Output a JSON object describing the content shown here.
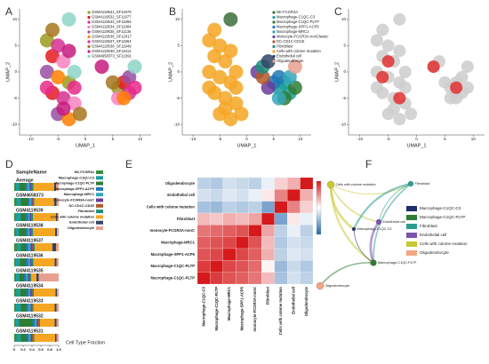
{
  "chart_data": [
    {
      "type": "scatter",
      "label": "A",
      "xlabel": "UMAP_1",
      "ylabel": "UMAP_2",
      "xlim": [
        -12,
        12
      ],
      "ylim": [
        -12,
        12
      ],
      "xticks": [
        -10,
        -5,
        0,
        5,
        10
      ],
      "yticks": [
        -10,
        -5,
        0,
        5,
        10
      ],
      "legend": "upper right",
      "series": [
        {
          "name": "GSM4119531_SF11979",
          "color": "#9b9b1e",
          "x": [
            -7,
            -3,
            6
          ],
          "y": [
            6,
            -2,
            -3
          ]
        },
        {
          "name": "GSM4119532_SF11977",
          "color": "#e41a1c",
          "x": [
            -6,
            -6,
            7
          ],
          "y": [
            3,
            -4,
            -2
          ]
        },
        {
          "name": "GSM4119533_SF11956",
          "color": "#d62f8e",
          "x": [
            -5,
            -4,
            8
          ],
          "y": [
            5,
            -5,
            -4
          ]
        },
        {
          "name": "GSM4119534_SF11964",
          "color": "#f781bf",
          "x": [
            -4,
            -2,
            6
          ],
          "y": [
            2,
            -6,
            -5
          ]
        },
        {
          "name": "GSM4119535_SF11136",
          "color": "#984ea3",
          "x": [
            -7,
            -5,
            8
          ],
          "y": [
            0,
            -8,
            -1
          ]
        },
        {
          "name": "GSM4119536_SF12017",
          "color": "#ff7f00",
          "x": [
            -5,
            -3,
            7
          ],
          "y": [
            -1,
            -9,
            -5
          ]
        },
        {
          "name": "GSM4119537_SF11964",
          "color": "#e7298a",
          "x": [
            -7,
            -2,
            9
          ],
          "y": [
            -3,
            -3,
            -3
          ]
        },
        {
          "name": "GSM4119538_SF11949",
          "color": "#a6761d",
          "x": [
            -1,
            -6,
            5
          ],
          "y": [
            -8,
            8,
            -2
          ]
        },
        {
          "name": "GSM4119539_SF11612",
          "color": "#c51b7d",
          "x": [
            -4,
            -3,
            3
          ],
          "y": [
            -7,
            4,
            1
          ]
        },
        {
          "name": "GSM4658373_SF11991",
          "color": "#8dd3c7",
          "x": [
            -2,
            -3,
            9
          ],
          "y": [
            0,
            10,
            1
          ]
        }
      ]
    },
    {
      "type": "scatter",
      "label": "B",
      "xlabel": "UMAP_1",
      "ylabel": "UMAP_2",
      "xlim": [
        -12,
        12
      ],
      "ylim": [
        -12,
        12
      ],
      "xticks": [
        -10,
        -5,
        0,
        5,
        10
      ],
      "yticks": [
        -10,
        -5,
        0,
        5,
        10
      ],
      "legend": "upper right",
      "series": [
        {
          "name": "NK-FCGR3A",
          "color": "#3b6e3b",
          "x": [
            -3
          ],
          "y": [
            10
          ]
        },
        {
          "name": "Macrophage-C1QC-C3",
          "color": "#1b9e9e",
          "x": [
            6,
            7,
            8
          ],
          "y": [
            -3,
            -2,
            -4
          ]
        },
        {
          "name": "Macrophage-C1QC-PLTP",
          "color": "#2e7d32",
          "x": [
            7,
            9
          ],
          "y": [
            -5,
            -3
          ]
        },
        {
          "name": "Macrophage-SPP1-ACP5",
          "color": "#1f78b4",
          "x": [
            5,
            6
          ],
          "y": [
            -2,
            -1
          ]
        },
        {
          "name": "Macrophage-MRC1",
          "color": "#33a6b8",
          "x": [
            6,
            8
          ],
          "y": [
            -5,
            -1
          ]
        },
        {
          "name": "Monocyte-FCGR3A-nonClassic",
          "color": "#6a3d9a",
          "x": [
            2,
            4
          ],
          "y": [
            0,
            -3
          ]
        },
        {
          "name": "DC-CD1C-CD1E",
          "color": "#b15928",
          "x": [
            3
          ],
          "y": [
            -1
          ]
        },
        {
          "name": "Fibroblast",
          "color": "#1f8f7a",
          "x": [
            3
          ],
          "y": [
            1
          ]
        },
        {
          "name": "Cells with colome mutation",
          "color": "#f5a623",
          "x": [
            -7,
            -6,
            -5,
            -4,
            -7,
            -5,
            -3,
            -6,
            -4,
            -2,
            -5,
            -3,
            -7,
            -2,
            -1,
            -4,
            -6,
            -3,
            -2
          ],
          "y": [
            6,
            3,
            5,
            2,
            0,
            -1,
            -2,
            -4,
            -5,
            -6,
            -8,
            -9,
            -3,
            -3,
            -8,
            -7,
            8,
            4,
            0
          ]
        },
        {
          "name": "Endothelial cell",
          "color": "#334466",
          "x": [
            4
          ],
          "y": [
            2
          ]
        },
        {
          "name": "Oligodendrocyte",
          "color": "#e8a090",
          "x": [
            9
          ],
          "y": [
            1
          ]
        }
      ]
    },
    {
      "type": "scatter",
      "label": "C",
      "xlabel": "UMAP_1",
      "ylabel": "UMAP_2",
      "xlim": [
        -12,
        12
      ],
      "ylim": [
        -12,
        12
      ],
      "xticks": [
        -10,
        -5,
        0,
        5,
        10
      ],
      "yticks": [
        -10,
        -5,
        0,
        5,
        10
      ],
      "series": [
        {
          "color": "#cccccc",
          "x": [
            -7,
            -6,
            -5,
            -4,
            -7,
            -5,
            -3,
            -6,
            -4,
            -2,
            -5,
            -3,
            -7,
            -2,
            -1,
            -4,
            -6,
            -3,
            -2,
            6,
            7,
            8,
            6,
            8,
            7,
            9,
            5,
            3,
            4,
            -3,
            9
          ],
          "y": [
            6,
            3,
            5,
            2,
            0,
            -1,
            -2,
            -4,
            -5,
            -6,
            -8,
            -9,
            -3,
            -3,
            -8,
            -7,
            8,
            4,
            0,
            -3,
            -2,
            -4,
            -5,
            -1,
            -5,
            -3,
            -2,
            1,
            2,
            10,
            1
          ]
        },
        {
          "color": "#e03030",
          "x": [
            -5,
            -3,
            7,
            -6,
            3
          ],
          "y": [
            2,
            -5,
            -3,
            -1,
            1
          ]
        }
      ]
    },
    {
      "type": "stacked-barh",
      "label": "D",
      "header": "SampleName",
      "xlabel": "Cell Type Fraction",
      "xlim": [
        0,
        1
      ],
      "xticks": [
        0,
        0.2,
        0.4,
        0.6,
        0.8,
        {
          "value": 1,
          "label": "1.0"
        }
      ],
      "categories": [
        "Average",
        "GSM4658373",
        "GSM4119539",
        "GSM4119538",
        "GSM4119537",
        "GSM4119536",
        "GSM4119535",
        "GSM4119534",
        "GSM4119533",
        "GSM4119532",
        "GSM4119531"
      ],
      "series": [
        {
          "name": "NK-FCGR3A",
          "color": "#3b8e3b",
          "values": [
            0.04,
            0.05,
            0.03,
            0.04,
            0.06,
            0.03,
            0.04,
            0.05,
            0.04,
            0.03,
            0.05
          ]
        },
        {
          "name": "Macrophage-C1QC-C3",
          "color": "#1b9e9e",
          "values": [
            0.08,
            0.1,
            0.12,
            0.07,
            0.09,
            0.1,
            0.08,
            0.09,
            0.11,
            0.08,
            0.1
          ]
        },
        {
          "name": "Macrophage-C1QC-PLTP",
          "color": "#2e7d32",
          "values": [
            0.12,
            0.15,
            0.1,
            0.14,
            0.11,
            0.12,
            0.1,
            0.13,
            0.12,
            0.3,
            0.12
          ]
        },
        {
          "name": "Macrophage-SPP1-ACP5",
          "color": "#1f78b4",
          "values": [
            0.05,
            0.04,
            0.06,
            0.05,
            0.05,
            0.06,
            0.04,
            0.05,
            0.04,
            0.05,
            0.05
          ]
        },
        {
          "name": "Macrophage-MRC1",
          "color": "#33a6b8",
          "values": [
            0.06,
            0.05,
            0.04,
            0.05,
            0.06,
            0.05,
            0.05,
            0.04,
            0.06,
            0.05,
            0.05
          ]
        },
        {
          "name": "monocyte-FCGR3A-nonC",
          "color": "#6a3d9a",
          "values": [
            0.03,
            0.02,
            0.03,
            0.03,
            0.04,
            0.02,
            0.03,
            0.03,
            0.02,
            0.03,
            0.03
          ]
        },
        {
          "name": "DC-CD1C-CD1E",
          "color": "#b15928",
          "values": [
            0.02,
            0.02,
            0.02,
            0.01,
            0.03,
            0.02,
            0.02,
            0.02,
            0.02,
            0.02,
            0.02
          ]
        },
        {
          "name": "Fibroblast",
          "color": "#1f8f7a",
          "values": [
            0.03,
            0.02,
            0.02,
            0.03,
            0.02,
            0.03,
            0.02,
            0.03,
            0.02,
            0.02,
            0.03
          ]
        },
        {
          "name": "Cells with colome mutation",
          "color": "#f5a623",
          "values": [
            0.47,
            0.45,
            0.52,
            0.5,
            0.4,
            0.48,
            0.12,
            0.49,
            0.48,
            0.33,
            0.47
          ]
        },
        {
          "name": "Endothelial cell",
          "color": "#334466",
          "values": [
            0.04,
            0.05,
            0.03,
            0.04,
            0.08,
            0.04,
            0.05,
            0.03,
            0.04,
            0.04,
            0.03
          ]
        },
        {
          "name": "Oligodendrocyte",
          "color": "#e8a090",
          "values": [
            0.06,
            0.05,
            0.03,
            0.04,
            0.06,
            0.05,
            0.45,
            0.04,
            0.05,
            0.05,
            0.05
          ]
        }
      ]
    },
    {
      "type": "heatmap",
      "label": "E",
      "zlim": [
        -1,
        1
      ],
      "colors": [
        "#2166ac",
        "#ffffff",
        "#d6191b"
      ],
      "rows": [
        "Oligodendrocyte",
        "Endothelial cell",
        "Cells with colome mutation",
        "Fibroblast",
        "monocyte-FCGR3A-nonC",
        "Macrophage-MRC1",
        "Macrophage-SPP1-ACP5",
        "Macrophage-C1QC-PLTP",
        "Macrophage-C1QC-PLTP"
      ],
      "columns": [
        "Macrophage-C1QC-C3",
        "Macrophage-C1QC-PLTP",
        "Macrophage-MRC1",
        "Macrophage-SPP1-ACP5",
        "monocyte-FCGR3A-nonC",
        "Fibroblast",
        "Cells with colome mutation",
        "Endothelial cell",
        "Oligodendrocyte"
      ],
      "values": [
        [
          -0.3,
          -0.35,
          -0.2,
          -0.25,
          -0.3,
          -0.1,
          0.2,
          0.35,
          1
        ],
        [
          -0.2,
          -0.25,
          -0.15,
          -0.2,
          -0.1,
          0.1,
          0.55,
          1,
          0.35
        ],
        [
          -0.4,
          -0.45,
          -0.3,
          -0.35,
          -0.3,
          -0.6,
          1,
          0.55,
          0.2
        ],
        [
          0.3,
          0.25,
          0.35,
          0.3,
          0.4,
          1,
          -0.6,
          0.1,
          -0.1
        ],
        [
          0.6,
          0.65,
          0.7,
          0.75,
          1,
          0.4,
          -0.3,
          -0.1,
          -0.3
        ],
        [
          0.7,
          0.75,
          0.8,
          1,
          0.75,
          0.3,
          -0.35,
          -0.2,
          -0.25
        ],
        [
          0.75,
          0.8,
          1,
          0.8,
          0.7,
          0.35,
          -0.3,
          -0.15,
          -0.2
        ],
        [
          0.85,
          1,
          0.8,
          0.75,
          0.65,
          0.05,
          -0.45,
          -0.25,
          -0.35
        ],
        [
          1,
          0.85,
          0.75,
          0.7,
          0.6,
          0.3,
          -0.4,
          -0.2,
          -0.3
        ]
      ]
    },
    {
      "type": "network",
      "label": "F",
      "nodes": [
        {
          "name": "Macrophage-C1QC-C3",
          "color": "#1f2d6b"
        },
        {
          "name": "Macrophage-C1QC-PLTP",
          "color": "#2e7d32"
        },
        {
          "name": "Fibroblast",
          "color": "#2a9d8f"
        },
        {
          "name": "Endothelial cell",
          "color": "#7b52ab"
        },
        {
          "name": "Cells with colome mutation",
          "color": "#c8c832"
        },
        {
          "name": "Oligodendrocyte",
          "color": "#f4a582"
        }
      ],
      "edges": [
        {
          "source": "Cells with colome mutation",
          "target": "Fibroblast"
        },
        {
          "source": "Cells with colome mutation",
          "target": "Endothelial cell"
        },
        {
          "source": "Cells with colome mutation",
          "target": "Macrophage-C1QC-PLTP"
        },
        {
          "source": "Cells with colome mutation",
          "target": "Macrophage-C1QC-C3"
        },
        {
          "source": "Fibroblast",
          "target": "Endothelial cell"
        },
        {
          "source": "Fibroblast",
          "target": "Macrophage-C1QC-PLTP"
        },
        {
          "source": "Fibroblast",
          "target": "Macrophage-C1QC-C3"
        },
        {
          "source": "Endothelial cell",
          "target": "Macrophage-C1QC-PLTP"
        },
        {
          "source": "Macrophage-C1QC-C3",
          "target": "Macrophage-C1QC-PLTP"
        },
        {
          "source": "Macrophage-C1QC-PLTP",
          "target": "Oligodendrocyte"
        }
      ]
    }
  ]
}
